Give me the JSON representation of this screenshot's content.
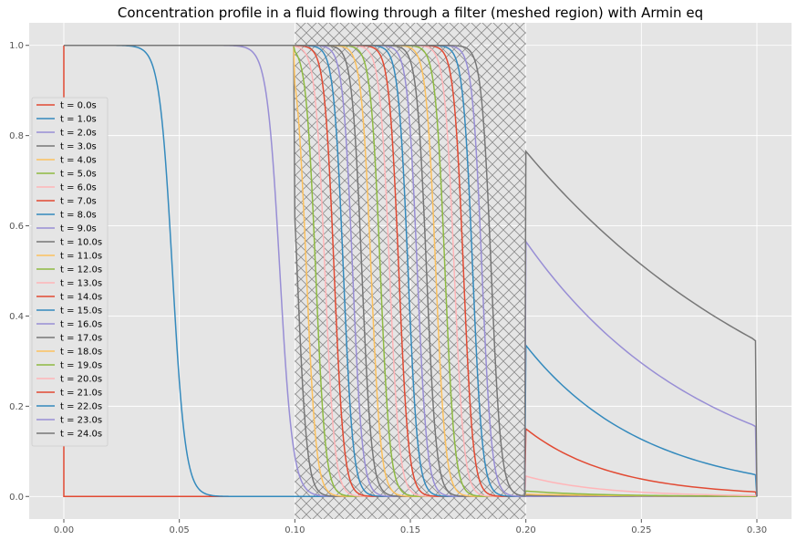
{
  "chart_data": {
    "type": "line",
    "title": "Concentration profile in a fluid flowing through a filter (meshed region) with Armin eq",
    "xlabel": "",
    "ylabel": "",
    "xlim": [
      -0.015,
      0.315
    ],
    "ylim": [
      -0.05,
      1.05
    ],
    "grid": true,
    "background": "#e5e5e5",
    "filter_region": {
      "x_start": 0.1,
      "x_end": 0.2,
      "hatch": "crosshatch",
      "hatch_color": "#8c8c8c"
    },
    "x_ticks": [
      0.0,
      0.05,
      0.1,
      0.15,
      0.2,
      0.25,
      0.3
    ],
    "x_tick_labels": [
      "0.00",
      "0.05",
      "0.10",
      "0.15",
      "0.20",
      "0.25",
      "0.30"
    ],
    "y_ticks": [
      0.0,
      0.2,
      0.4,
      0.6,
      0.8,
      1.0
    ],
    "y_tick_labels": [
      "0.0",
      "0.2",
      "0.4",
      "0.6",
      "0.8",
      "1.0"
    ],
    "legend_position": "center-left",
    "color_cycle": [
      "#E24A33",
      "#348ABD",
      "#988ED5",
      "#777777",
      "#FBC15E",
      "#8EBA42",
      "#FFB5B8"
    ],
    "series": [
      {
        "name": "t = 0.0s",
        "front_x": 0.0,
        "outlet_C": 0.0,
        "tail_C": 0.0
      },
      {
        "name": "t = 1.0s",
        "front_x": 0.047,
        "outlet_C": 0.0,
        "tail_C": 0.0
      },
      {
        "name": "t = 2.0s",
        "front_x": 0.0935,
        "outlet_C": 0.0,
        "tail_C": 0.0
      },
      {
        "name": "t = 3.0s",
        "front_x": 0.101,
        "outlet_C": 0.0,
        "tail_C": 0.0
      },
      {
        "name": "t = 4.0s",
        "front_x": 0.105,
        "outlet_C": 0.0,
        "tail_C": 0.0
      },
      {
        "name": "t = 5.0s",
        "front_x": 0.109,
        "outlet_C": 0.0,
        "tail_C": 0.0
      },
      {
        "name": "t = 6.0s",
        "front_x": 0.113,
        "outlet_C": 0.0,
        "tail_C": 0.0
      },
      {
        "name": "t = 7.0s",
        "front_x": 0.117,
        "outlet_C": 0.0,
        "tail_C": 0.0
      },
      {
        "name": "t = 8.0s",
        "front_x": 0.121,
        "outlet_C": 0.0,
        "tail_C": 0.0
      },
      {
        "name": "t = 9.0s",
        "front_x": 0.125,
        "outlet_C": 0.0,
        "tail_C": 0.0
      },
      {
        "name": "t = 10.0s",
        "front_x": 0.129,
        "outlet_C": 0.0,
        "tail_C": 0.0
      },
      {
        "name": "t = 11.0s",
        "front_x": 0.133,
        "outlet_C": 0.0,
        "tail_C": 0.0
      },
      {
        "name": "t = 12.0s",
        "front_x": 0.137,
        "outlet_C": 0.0,
        "tail_C": 0.0
      },
      {
        "name": "t = 13.0s",
        "front_x": 0.141,
        "outlet_C": 0.0,
        "tail_C": 0.0
      },
      {
        "name": "t = 14.0s",
        "front_x": 0.145,
        "outlet_C": 0.0,
        "tail_C": 0.0
      },
      {
        "name": "t = 15.0s",
        "front_x": 0.149,
        "outlet_C": 0.0,
        "tail_C": 0.0
      },
      {
        "name": "t = 16.0s",
        "front_x": 0.153,
        "outlet_C": 0.0,
        "tail_C": 0.0
      },
      {
        "name": "t = 17.0s",
        "front_x": 0.157,
        "outlet_C": 0.002,
        "tail_C": 0.0
      },
      {
        "name": "t = 18.0s",
        "front_x": 0.161,
        "outlet_C": 0.005,
        "tail_C": 0.0
      },
      {
        "name": "t = 19.0s",
        "front_x": 0.165,
        "outlet_C": 0.012,
        "tail_C": 0.0
      },
      {
        "name": "t = 20.0s",
        "front_x": 0.169,
        "outlet_C": 0.045,
        "tail_C": 0.002
      },
      {
        "name": "t = 21.0s",
        "front_x": 0.173,
        "outlet_C": 0.15,
        "tail_C": 0.01
      },
      {
        "name": "t = 22.0s",
        "front_x": 0.177,
        "outlet_C": 0.335,
        "tail_C": 0.048
      },
      {
        "name": "t = 23.0s",
        "front_x": 0.181,
        "outlet_C": 0.565,
        "tail_C": 0.155
      },
      {
        "name": "t = 24.0s",
        "front_x": 0.185,
        "outlet_C": 0.765,
        "tail_C": 0.345
      }
    ]
  }
}
